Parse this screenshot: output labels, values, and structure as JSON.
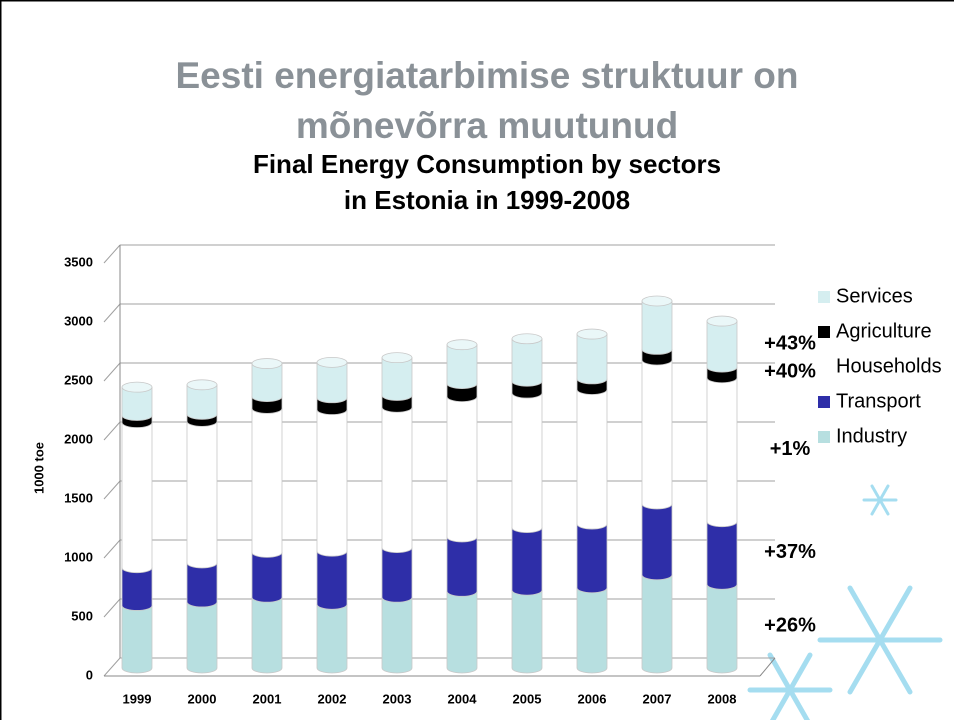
{
  "slide_title": "Eesti energiatarbimise struktuur on mõnevõrra muutunud",
  "chart_data": {
    "type": "stacked-cylinder",
    "title": "Final Energy Consumption by sectors in Estonia in 1999-2008",
    "y_label": "1000 toe",
    "categories": [
      "1999",
      "2000",
      "2001",
      "2002",
      "2003",
      "2004",
      "2005",
      "2006",
      "2007",
      "2008"
    ],
    "series": [
      {
        "name": "Industry",
        "color": "#b7dfe0",
        "values": [
          530,
          560,
          600,
          540,
          600,
          650,
          660,
          680,
          790,
          710
        ]
      },
      {
        "name": "Transport",
        "color": "#2e2ea8",
        "values": [
          320,
          330,
          380,
          450,
          420,
          460,
          530,
          540,
          600,
          530
        ]
      },
      {
        "name": "Households",
        "color": "#ffffff",
        "values": [
          1230,
          1200,
          1220,
          1200,
          1190,
          1190,
          1140,
          1140,
          1220,
          1220
        ]
      },
      {
        "name": "Agriculture",
        "color": "#000000",
        "values": [
          60,
          60,
          100,
          100,
          100,
          110,
          100,
          90,
          90,
          90
        ]
      },
      {
        "name": "Services",
        "color": "#d5eef0",
        "values": [
          240,
          250,
          280,
          300,
          320,
          330,
          360,
          380,
          410,
          390
        ]
      }
    ],
    "annotations": [
      "+26%",
      "+37%",
      "+1%",
      "+40%",
      "+43%"
    ],
    "ylim": [
      0,
      3500
    ],
    "yticks": [
      0,
      500,
      1000,
      1500,
      2000,
      2500,
      3000,
      3500
    ],
    "grid": true
  }
}
